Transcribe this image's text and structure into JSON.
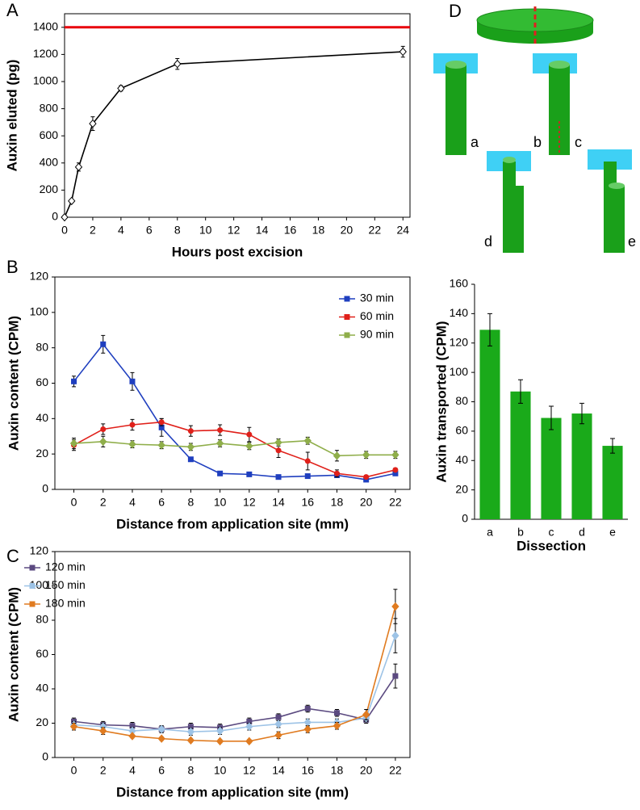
{
  "chart_data": [
    {
      "type": "line",
      "panel": "A",
      "xlabel": "Hours post excision",
      "ylabel": "Auxin eluted (pg)",
      "x": [
        0,
        0.5,
        1,
        2,
        4,
        8,
        24
      ],
      "series": [
        {
          "color": "#000000",
          "marker": "diamond-open",
          "values": [
            0,
            120,
            370,
            690,
            950,
            1130,
            1220
          ],
          "errors": [
            0,
            10,
            30,
            50,
            20,
            40,
            40
          ]
        }
      ],
      "hline": {
        "value": 1400,
        "color": "#e8000b"
      },
      "xlim": [
        0,
        24.5
      ],
      "xticks": [
        0,
        2,
        4,
        6,
        8,
        10,
        12,
        14,
        16,
        18,
        20,
        22,
        24
      ],
      "ylim": [
        0,
        1500
      ],
      "yticks": [
        0,
        200,
        400,
        600,
        800,
        1000,
        1200,
        1400
      ]
    },
    {
      "type": "line",
      "panel": "B",
      "xlabel": "Distance from application site (mm)",
      "ylabel": "Auxin content (CPM)",
      "x": [
        0,
        2,
        4,
        6,
        8,
        10,
        12,
        14,
        16,
        18,
        20,
        22
      ],
      "series": [
        {
          "name": "30 min",
          "color": "#1f3fbf",
          "marker": "square",
          "values": [
            61,
            82,
            61,
            35,
            17,
            9,
            8.5,
            7,
            7.5,
            8,
            5.5,
            9
          ],
          "errors": [
            3,
            5,
            5,
            5,
            1,
            1,
            1,
            1,
            1,
            1,
            1,
            1
          ]
        },
        {
          "name": "60 min",
          "color": "#e0201a",
          "marker": "circle",
          "values": [
            25,
            34,
            36.5,
            38,
            33,
            33.5,
            31,
            22,
            16,
            9,
            7,
            11
          ],
          "errors": [
            3,
            3,
            3,
            2,
            3,
            3,
            4,
            4,
            5,
            2,
            1,
            1
          ]
        },
        {
          "name": "90 min",
          "color": "#8fae4a",
          "marker": "diamond",
          "values": [
            26,
            27,
            25.5,
            25,
            24,
            26,
            24.5,
            26.5,
            27.5,
            19,
            19.5,
            19.5
          ],
          "errors": [
            3,
            3,
            2,
            2,
            2,
            2,
            2,
            2,
            2,
            3,
            2,
            2
          ]
        }
      ],
      "legend": "top-right",
      "xlim": [
        -1.3,
        23
      ],
      "xticks": [
        0,
        2,
        4,
        6,
        8,
        10,
        12,
        14,
        16,
        18,
        20,
        22
      ],
      "ylim": [
        0,
        120
      ],
      "yticks": [
        0,
        20,
        40,
        60,
        80,
        100,
        120
      ]
    },
    {
      "type": "line",
      "panel": "C",
      "xlabel": "Distance from application site (mm)",
      "ylabel": "Auxin content (CPM)",
      "x": [
        0,
        2,
        4,
        6,
        8,
        10,
        12,
        14,
        16,
        18,
        20,
        22
      ],
      "series": [
        {
          "name": "120 min",
          "color": "#5b4a80",
          "marker": "square",
          "values": [
            21,
            19,
            18.5,
            16.5,
            18,
            17.5,
            21,
            23.5,
            28.5,
            26,
            22,
            47.5
          ],
          "errors": [
            2,
            2,
            2,
            2,
            2,
            2,
            2,
            2,
            2,
            2,
            2,
            7
          ]
        },
        {
          "name": "150 min",
          "color": "#9dc3e6",
          "marker": "diamond",
          "values": [
            19,
            18,
            15.5,
            16.5,
            15,
            15.5,
            18,
            19.5,
            20.5,
            20.5,
            23,
            71
          ],
          "errors": [
            2,
            2,
            2,
            2,
            2,
            2,
            2,
            2,
            2,
            2,
            2,
            10
          ]
        },
        {
          "name": "180 min",
          "color": "#e07b20",
          "marker": "diamond",
          "values": [
            18,
            15.5,
            12.5,
            11,
            10,
            9.5,
            9.5,
            13,
            16.5,
            18.5,
            25,
            88
          ],
          "errors": [
            2,
            2,
            1,
            1,
            1,
            1,
            1,
            2,
            2,
            2,
            3,
            10
          ]
        }
      ],
      "legend": "top-left",
      "xlim": [
        -1.3,
        23
      ],
      "xticks": [
        0,
        2,
        4,
        6,
        8,
        10,
        12,
        14,
        16,
        18,
        20,
        22
      ],
      "ylim": [
        0,
        120
      ],
      "yticks": [
        0,
        20,
        40,
        60,
        80,
        100,
        120
      ]
    },
    {
      "type": "bar",
      "xlabel": "Dissection",
      "ylabel": "Auxin transported (CPM)",
      "categories": [
        "a",
        "b",
        "c",
        "d",
        "e"
      ],
      "values": [
        129,
        87,
        69,
        72,
        50
      ],
      "errors": [
        11,
        8,
        8,
        7,
        5
      ],
      "color": "#1aaa1a",
      "ylim": [
        0,
        160
      ],
      "yticks": [
        0,
        20,
        40,
        60,
        80,
        100,
        120,
        140,
        160
      ]
    }
  ],
  "diagram": {
    "panel": "D",
    "labels": [
      "a",
      "b",
      "c",
      "d",
      "e"
    ]
  }
}
